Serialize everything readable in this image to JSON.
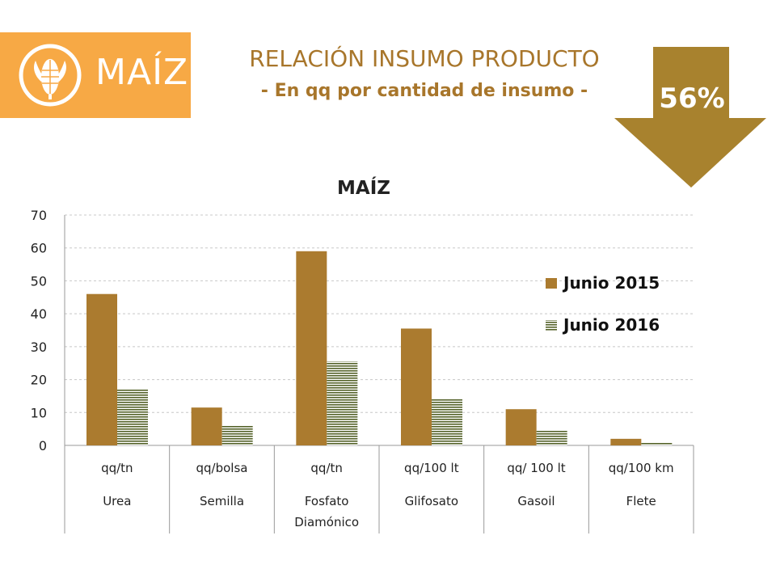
{
  "header": {
    "logo_text": "MAÍZ",
    "title": "RELACIÓN INSUMO PRODUCTO",
    "subtitle": "- En qq por cantidad de insumo -",
    "change_percent": "56%"
  },
  "colors": {
    "logo_bg": "#f7a945",
    "title": "#a8762b",
    "arrow": "#a8822e",
    "series_2015": "#ab7b2f",
    "series_2016": "#55632a"
  },
  "icons": {
    "logo": "corn-icon",
    "change": "down-arrow-icon"
  },
  "chart_data": {
    "type": "bar",
    "title": "MAÍZ",
    "categories": [
      {
        "unit": "qq/tn",
        "name": [
          "Urea"
        ]
      },
      {
        "unit": "qq/bolsa",
        "name": [
          "Semilla"
        ]
      },
      {
        "unit": "qq/tn",
        "name": [
          "Fosfato",
          "Diamónico"
        ]
      },
      {
        "unit": "qq/100 lt",
        "name": [
          "Glifosato"
        ]
      },
      {
        "unit": "qq/ 100 lt",
        "name": [
          "Gasoil"
        ]
      },
      {
        "unit": "qq/100 km",
        "name": [
          "Flete"
        ]
      }
    ],
    "series": [
      {
        "name": "Junio 2015",
        "values": [
          46,
          11.5,
          59,
          35.5,
          11,
          2
        ]
      },
      {
        "name": "Junio 2016",
        "values": [
          17,
          6,
          25.5,
          14,
          4.5,
          0.8
        ]
      }
    ],
    "yticks": [
      0,
      10,
      20,
      30,
      40,
      50,
      60,
      70
    ],
    "ylim": [
      0,
      70
    ],
    "grid": true,
    "legend_position": "right"
  }
}
